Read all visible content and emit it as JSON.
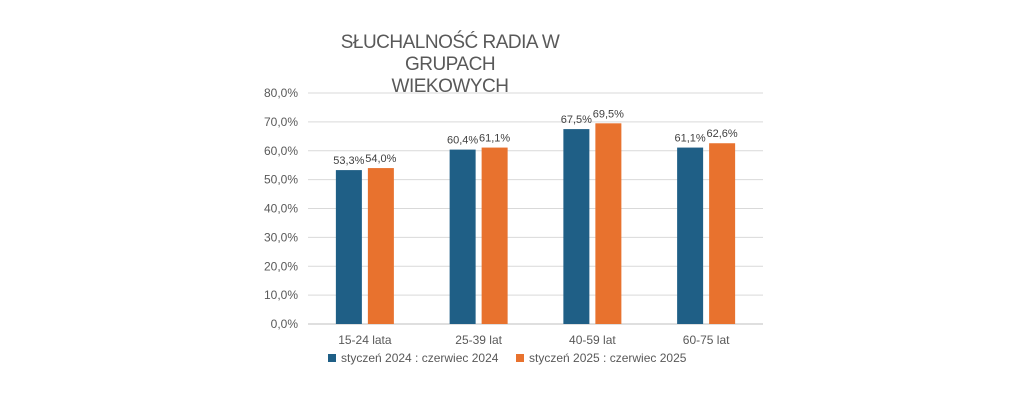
{
  "chart_data": {
    "type": "bar",
    "title_lines": [
      "SŁUCHALNOŚĆ RADIA W GRUPACH",
      "WIEKOWYCH"
    ],
    "categories": [
      "15-24 lata",
      "25-39 lat",
      "40-59 lat",
      "60-75 lat"
    ],
    "series": [
      {
        "name": "styczeń 2024 : czerwiec 2024",
        "color": "#1f5f86",
        "values": [
          53.3,
          60.4,
          67.5,
          61.1
        ],
        "labels": [
          "53,3%",
          "60,4%",
          "67,5%",
          "61,1%"
        ]
      },
      {
        "name": "styczeń 2025 : czerwiec 2025",
        "color": "#e8722e",
        "values": [
          54.0,
          61.1,
          69.5,
          62.6
        ],
        "labels": [
          "54,0%",
          "61,1%",
          "69,5%",
          "62,6%"
        ]
      }
    ],
    "ylim": [
      0,
      80
    ],
    "y_ticks": [
      "0,0%",
      "10,0%",
      "20,0%",
      "30,0%",
      "40,0%",
      "50,0%",
      "60,0%",
      "70,0%",
      "80,0%"
    ],
    "grid": true,
    "legend_position": "bottom"
  }
}
